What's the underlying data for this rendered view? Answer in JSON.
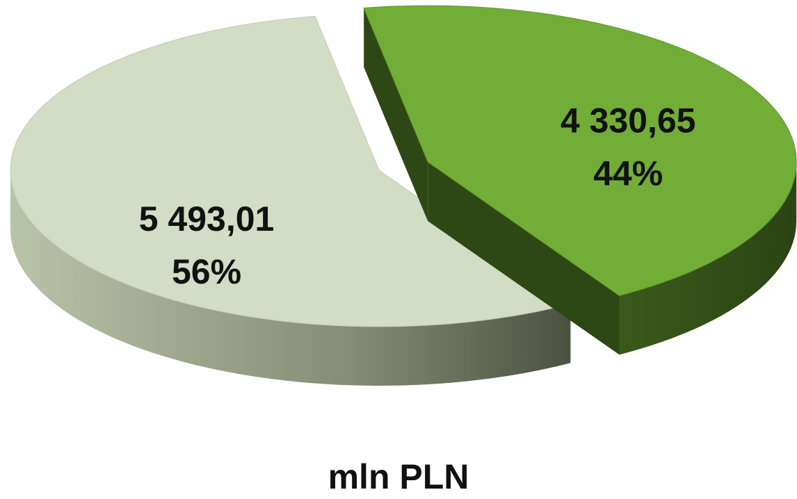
{
  "chart_data": {
    "type": "pie",
    "categories": [
      null,
      null
    ],
    "values": [
      4330.65,
      5493.01
    ],
    "value_labels": [
      "4 330,65",
      "5 493,01"
    ],
    "percents": [
      44,
      56
    ],
    "percent_labels": [
      "44%",
      "56%"
    ],
    "colors": [
      "#72ad37",
      "#d3dcc4"
    ],
    "xlabel": "mln PLN"
  }
}
